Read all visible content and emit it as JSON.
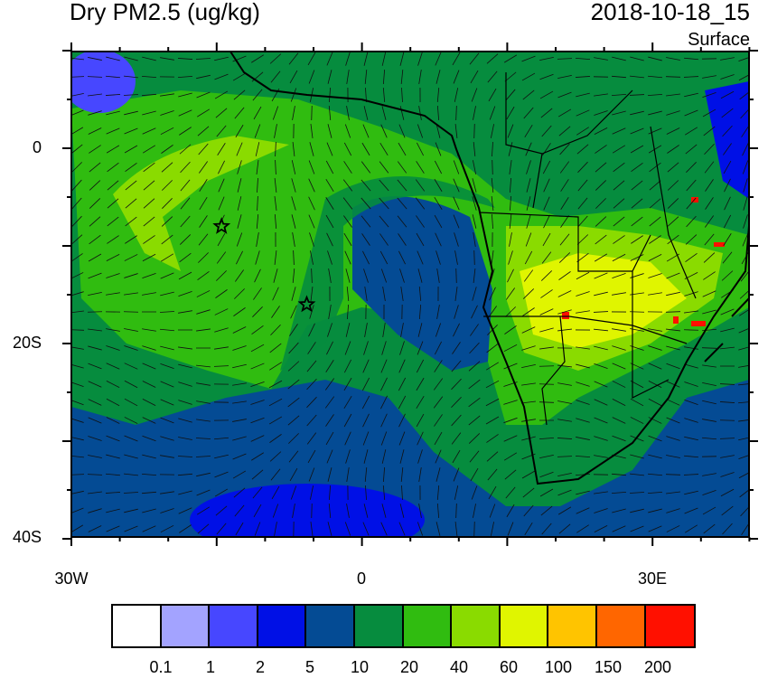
{
  "title": "Dry PM2.5 (ug/kg)",
  "datetime": "2018-10-18_15",
  "level": "Surface",
  "axes": {
    "lat_labels": [
      {
        "label": "0",
        "lat": 0
      },
      {
        "label": "20S",
        "lat": -20
      },
      {
        "label": "40S",
        "lat": -40
      }
    ],
    "lon_labels": [
      {
        "label": "30W",
        "lon": -30
      },
      {
        "label": "0",
        "lon": 0
      },
      {
        "label": "30E",
        "lon": 30
      }
    ],
    "lon_range": [
      -30,
      40
    ],
    "lat_range": [
      -40,
      10
    ]
  },
  "colorbar": {
    "colors": [
      "#FFFFFF",
      "#A3A3FF",
      "#4747FF",
      "#0010E6",
      "#044B94",
      "#068C3E",
      "#30BC10",
      "#8ADB00",
      "#E0F500",
      "#FFC400",
      "#FF6600",
      "#FF1000"
    ],
    "labels": [
      "0.1",
      "1",
      "2",
      "5",
      "10",
      "20",
      "40",
      "60",
      "100",
      "150",
      "200"
    ]
  },
  "markers": [
    {
      "name": "star",
      "lon": -14.5,
      "lat": -8
    },
    {
      "name": "star",
      "lon": -5.7,
      "lat": -16
    }
  ]
}
